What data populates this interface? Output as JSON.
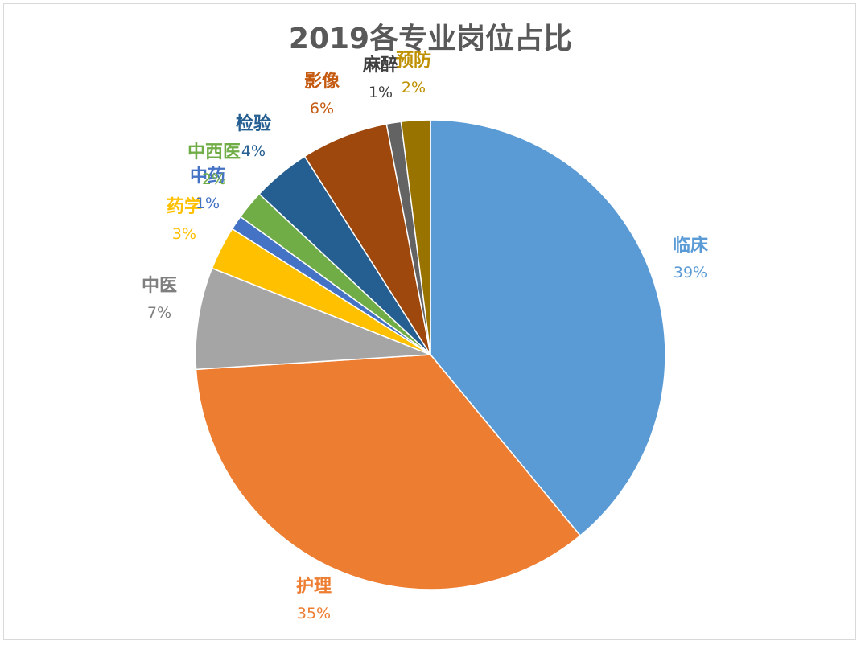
{
  "chart_data": {
    "type": "pie",
    "title": "2019各专业岗位占比",
    "start_angle_deg": 0,
    "direction": "clockwise",
    "slices": [
      {
        "name": "临床",
        "value": 39,
        "label": "39%",
        "color": "#5b9bd5"
      },
      {
        "name": "护理",
        "value": 35,
        "label": "35%",
        "color": "#ed7d31"
      },
      {
        "name": "中医",
        "value": 7,
        "label": "7%",
        "color": "#a5a5a5"
      },
      {
        "name": "药学",
        "value": 3,
        "label": "3%",
        "color": "#ffc000"
      },
      {
        "name": "中药",
        "value": 1,
        "label": "1%",
        "color": "#4472c4"
      },
      {
        "name": "中西医",
        "value": 2,
        "label": "2%",
        "color": "#70ad47"
      },
      {
        "name": "检验",
        "value": 4,
        "label": "4%",
        "color": "#255e91"
      },
      {
        "name": "影像",
        "value": 6,
        "label": "6%",
        "color": "#9e480e"
      },
      {
        "name": "麻醉",
        "value": 1,
        "label": "1%",
        "color": "#636363"
      },
      {
        "name": "预防",
        "value": 2,
        "label": "2%",
        "color": "#997300"
      }
    ],
    "label_colors": {
      "临床": "#5b9bd5",
      "护理": "#ed7d31",
      "中医": "#7f7f7f",
      "药学": "#ffc000",
      "中药": "#4472c4",
      "中西医": "#70ad47",
      "检验": "#255e91",
      "影像": "#c55a11",
      "麻醉": "#404040",
      "预防": "#bf9000"
    }
  }
}
